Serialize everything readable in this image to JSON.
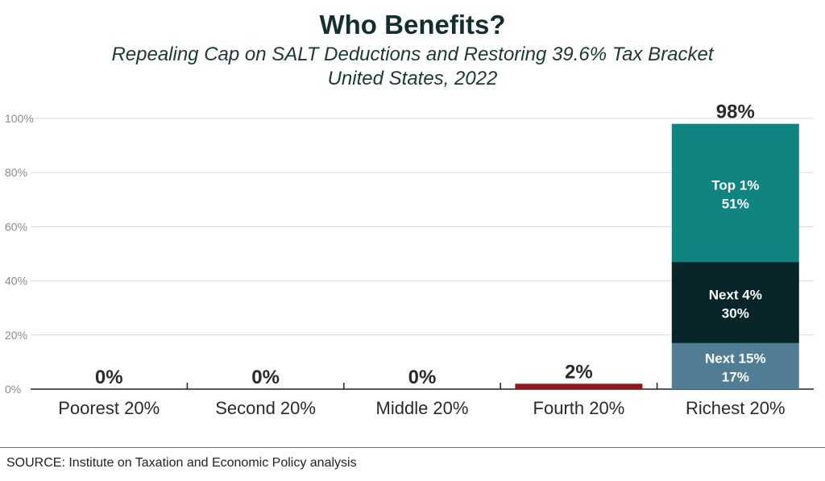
{
  "chart_data": {
    "type": "bar",
    "title": "Who Benefits?",
    "subtitle_line1": "Repealing Cap on SALT Deductions and Restoring 39.6% Tax Bracket",
    "subtitle_line2": "United States, 2022",
    "categories": [
      "Poorest 20%",
      "Second 20%",
      "Middle 20%",
      "Fourth 20%",
      "Richest 20%"
    ],
    "values": [
      0,
      0,
      0,
      2,
      98
    ],
    "value_labels": [
      "0%",
      "0%",
      "0%",
      "2%",
      "98%"
    ],
    "bar_color": "#8b1a1a",
    "ylim": [
      0,
      100
    ],
    "yticks": [
      0,
      20,
      40,
      60,
      80,
      100
    ],
    "ytick_labels": [
      "0%",
      "20%",
      "40%",
      "60%",
      "80%",
      "100%"
    ],
    "grid": true,
    "xlabel": "",
    "ylabel": "",
    "stack": {
      "category": "Richest 20%",
      "segments": [
        {
          "name": "Next 15%",
          "value": 17,
          "label": "17%",
          "color": "#507d93"
        },
        {
          "name": "Next 4%",
          "value": 30,
          "label": "30%",
          "color": "#08262a"
        },
        {
          "name": "Top 1%",
          "value": 51,
          "label": "51%",
          "color": "#0f8480"
        }
      ]
    }
  },
  "source": "SOURCE: Institute on Taxation and Economic Policy analysis"
}
